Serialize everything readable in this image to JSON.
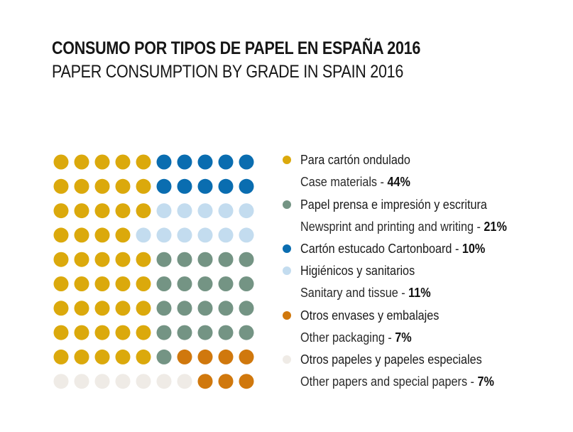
{
  "title_es": "CONSUMO POR TIPOS DE PAPEL EN ESPAÑA 2016",
  "title_en": "PAPER CONSUMPTION BY GRADE IN SPAIN 2016",
  "chart_data": {
    "type": "waffle",
    "title": "CONSUMO POR TIPOS DE PAPEL EN ESPAÑA 2016",
    "subtitle": "PAPER CONSUMPTION BY GRADE IN SPAIN 2016",
    "units": "%",
    "grid_rows": 10,
    "grid_cols": 10,
    "legend_position": "right",
    "categories": [
      {
        "key": "case",
        "name_es": "Para cartón ondulado",
        "name_en": "Case materials",
        "value": 44,
        "pct_label": "44%",
        "color": "#dba90c"
      },
      {
        "key": "newsprint",
        "name_es": "Papel prensa e impresión y escritura",
        "name_en": "Newsprint and printing and writing",
        "value": 21,
        "pct_label": "21%",
        "color": "#749484"
      },
      {
        "key": "cartonboard",
        "name_es": "Cartón estucado",
        "name_en": "Cartonboard",
        "value": 10,
        "pct_label": "10%",
        "color": "#0a6db0"
      },
      {
        "key": "tissue",
        "name_es": "Higiénicos y sanitarios",
        "name_en": "Sanitary and tissue",
        "value": 11,
        "pct_label": "11%",
        "color": "#c3dcef"
      },
      {
        "key": "packaging",
        "name_es": "Otros envases y embalajes",
        "name_en": "Other packaging",
        "value": 7,
        "pct_label": "7%",
        "color": "#d0780d"
      },
      {
        "key": "other",
        "name_es": "Otros papeles y papeles especiales",
        "name_en": "Other papers and special papers",
        "value": 7,
        "pct_label": "7%",
        "color": "#efebe6"
      }
    ],
    "cells": [
      [
        "case",
        "case",
        "case",
        "case",
        "case",
        "cartonboard",
        "cartonboard",
        "cartonboard",
        "cartonboard",
        "cartonboard"
      ],
      [
        "case",
        "case",
        "case",
        "case",
        "case",
        "cartonboard",
        "cartonboard",
        "cartonboard",
        "cartonboard",
        "cartonboard"
      ],
      [
        "case",
        "case",
        "case",
        "case",
        "case",
        "tissue",
        "tissue",
        "tissue",
        "tissue",
        "tissue"
      ],
      [
        "case",
        "case",
        "case",
        "case",
        "tissue",
        "tissue",
        "tissue",
        "tissue",
        "tissue",
        "tissue"
      ],
      [
        "case",
        "case",
        "case",
        "case",
        "case",
        "newsprint",
        "newsprint",
        "newsprint",
        "newsprint",
        "newsprint"
      ],
      [
        "case",
        "case",
        "case",
        "case",
        "case",
        "newsprint",
        "newsprint",
        "newsprint",
        "newsprint",
        "newsprint"
      ],
      [
        "case",
        "case",
        "case",
        "case",
        "case",
        "newsprint",
        "newsprint",
        "newsprint",
        "newsprint",
        "newsprint"
      ],
      [
        "case",
        "case",
        "case",
        "case",
        "case",
        "newsprint",
        "newsprint",
        "newsprint",
        "newsprint",
        "newsprint"
      ],
      [
        "case",
        "case",
        "case",
        "case",
        "case",
        "newsprint",
        "packaging",
        "packaging",
        "packaging",
        "packaging"
      ],
      [
        "other",
        "other",
        "other",
        "other",
        "other",
        "other",
        "other",
        "packaging",
        "packaging",
        "packaging"
      ]
    ]
  },
  "legend": [
    {
      "swatch": "case",
      "text": "Para cartón ondulado",
      "pct": ""
    },
    {
      "swatch": "",
      "text": "Case materials - ",
      "pct": "44%"
    },
    {
      "swatch": "newsprint",
      "text": "Papel prensa e impresión y escritura",
      "pct": ""
    },
    {
      "swatch": "",
      "text": "Newsprint and printing and writing - ",
      "pct": "21%"
    },
    {
      "swatch": "cartonboard",
      "text_es": "Cartón estucado",
      "text": " Cartonboard - ",
      "pct": "10%"
    },
    {
      "swatch": "tissue",
      "text": "Higiénicos y sanitarios",
      "pct": ""
    },
    {
      "swatch": "",
      "text": "Sanitary and tissue - ",
      "pct": "11%"
    },
    {
      "swatch": "packaging",
      "text": "Otros envases y embalajes",
      "pct": ""
    },
    {
      "swatch": "",
      "text": "Other packaging - ",
      "pct": "7%"
    },
    {
      "swatch": "other",
      "text": "Otros papeles y papeles especiales",
      "pct": ""
    },
    {
      "swatch": "",
      "text": "Other papers and special papers - ",
      "pct": "7%"
    }
  ]
}
